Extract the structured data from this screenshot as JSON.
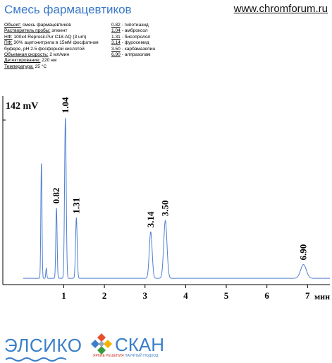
{
  "header": {
    "title": "Смесь фармацевтиков",
    "site": "www.chromforum.ru"
  },
  "conditions": [
    {
      "label": "Объект:",
      "value": " смесь фармацевтиков"
    },
    {
      "label": "Растворитель пробы:",
      "value": " элюент"
    },
    {
      "label": "НФ:",
      "value": " 100x4 Reprosil-Pur C18-AQ  (3 um)"
    },
    {
      "label": "ПФ:",
      "value": " 30% ацетонитрила в 15мМ фосфатном"
    },
    {
      "label": "",
      "value": "буфере, pH 2.5 фосфорной кислотой"
    },
    {
      "label": "Объемная скорость:",
      "value": " 2 мл/мин"
    },
    {
      "label": "Детектирование:",
      "value": " 220 нм"
    },
    {
      "label": "Температура:",
      "value": " 25 °C"
    }
  ],
  "peak_list": [
    {
      "rt": "0.82",
      "name": " - гипотиазид"
    },
    {
      "rt": "1.04",
      "name": " - амброксол"
    },
    {
      "rt": "1.31",
      "name": " - бисопролол"
    },
    {
      "rt": "3.14",
      "name": " - фуросемид"
    },
    {
      "rt": "3.50",
      "name": " - карбамазепин"
    },
    {
      "rt": "6.90",
      "name": " - алпразолам"
    }
  ],
  "chart_data": {
    "type": "line",
    "ylabel": "142 mV",
    "xlabel": "мин",
    "xlim": [
      -0.5,
      7.55
    ],
    "ylim": [
      -5,
      145
    ],
    "x_ticks": [
      1,
      2,
      3,
      4,
      5,
      6,
      7
    ],
    "baseline": 0,
    "line_color": "#4f7fd0",
    "peaks": [
      {
        "x": 0.45,
        "height": 92,
        "width": 0.014
      },
      {
        "x": 0.57,
        "height": 8,
        "width": 0.012
      },
      {
        "x": 0.82,
        "height": 56,
        "width": 0.016,
        "label": "0.82"
      },
      {
        "x": 1.04,
        "height": 128,
        "width": 0.02,
        "label": "1.04"
      },
      {
        "x": 1.31,
        "height": 48,
        "width": 0.02,
        "label": "1.31"
      },
      {
        "x": 3.14,
        "height": 37,
        "width": 0.035,
        "label": "3.14"
      },
      {
        "x": 3.5,
        "height": 46,
        "width": 0.04,
        "label": "3.50"
      },
      {
        "x": 6.9,
        "height": 11,
        "width": 0.07,
        "label": "6.90"
      }
    ]
  },
  "footer": {
    "logo1": "ЭЛСИКО",
    "logo2": "СКАН",
    "slogan_red": "ЯРКИЕ РЕШЕНИЯ",
    "slogan_blue": "НАУЧНЫЙ ПОДХОД"
  }
}
